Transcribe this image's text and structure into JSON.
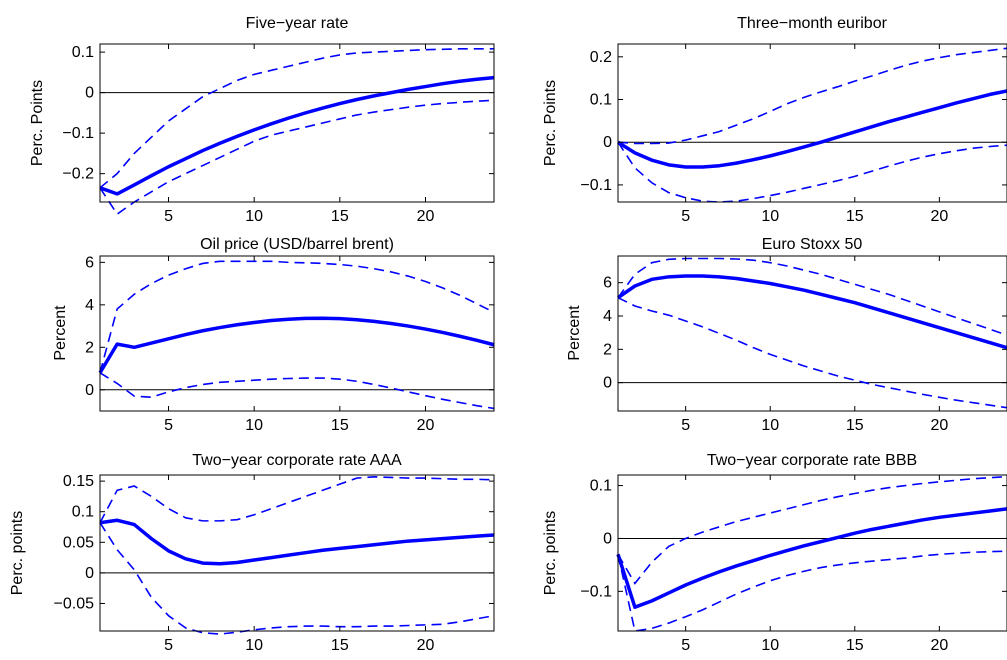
{
  "colors": {
    "estimate": "#0000ff",
    "band": "#0000ff",
    "axis": "#000000"
  },
  "chart_data": [
    {
      "type": "line",
      "title": "Five−year rate",
      "ylabel": "Perc. Points",
      "xlim": [
        1,
        24
      ],
      "ylim": [
        -0.27,
        0.12
      ],
      "xticks": [
        5,
        10,
        15,
        20
      ],
      "yticks": [
        -0.2,
        -0.1,
        0,
        0.1
      ],
      "ytick_labels": [
        "−0.2",
        "−0.1",
        "0",
        "0.1"
      ],
      "x": [
        1,
        2,
        3,
        4,
        5,
        6,
        7,
        8,
        9,
        10,
        11,
        12,
        13,
        14,
        15,
        16,
        17,
        18,
        19,
        20,
        21,
        22,
        23,
        24
      ],
      "series": [
        {
          "role": "estimate",
          "values": [
            -0.235,
            -0.25,
            -0.228,
            -0.205,
            -0.183,
            -0.163,
            -0.143,
            -0.125,
            -0.108,
            -0.092,
            -0.077,
            -0.063,
            -0.05,
            -0.038,
            -0.027,
            -0.017,
            -0.008,
            0.0,
            0.008,
            0.015,
            0.022,
            0.028,
            0.033,
            0.037
          ]
        },
        {
          "role": "upper",
          "values": [
            -0.235,
            -0.2,
            -0.15,
            -0.11,
            -0.07,
            -0.04,
            -0.01,
            0.01,
            0.03,
            0.045,
            0.055,
            0.065,
            0.075,
            0.085,
            0.093,
            0.098,
            0.1,
            0.102,
            0.104,
            0.106,
            0.107,
            0.108,
            0.108,
            0.108
          ]
        },
        {
          "role": "lower",
          "values": [
            -0.235,
            -0.3,
            -0.27,
            -0.245,
            -0.22,
            -0.2,
            -0.18,
            -0.16,
            -0.14,
            -0.12,
            -0.105,
            -0.095,
            -0.085,
            -0.075,
            -0.065,
            -0.055,
            -0.048,
            -0.042,
            -0.036,
            -0.031,
            -0.027,
            -0.024,
            -0.021,
            -0.019
          ]
        }
      ]
    },
    {
      "type": "line",
      "title": "Three−month euribor",
      "ylabel": "Perc. Points",
      "xlim": [
        1,
        24
      ],
      "ylim": [
        -0.14,
        0.23
      ],
      "xticks": [
        5,
        10,
        15,
        20
      ],
      "yticks": [
        -0.1,
        0,
        0.1,
        0.2
      ],
      "ytick_labels": [
        "−0.1",
        "0",
        "0.1",
        "0.2"
      ],
      "x": [
        1,
        2,
        3,
        4,
        5,
        6,
        7,
        8,
        9,
        10,
        11,
        12,
        13,
        14,
        15,
        16,
        17,
        18,
        19,
        20,
        21,
        22,
        23,
        24
      ],
      "series": [
        {
          "role": "estimate",
          "values": [
            0.0,
            -0.025,
            -0.042,
            -0.053,
            -0.058,
            -0.058,
            -0.055,
            -0.049,
            -0.041,
            -0.032,
            -0.022,
            -0.011,
            0.0,
            0.012,
            0.024,
            0.036,
            0.048,
            0.059,
            0.07,
            0.081,
            0.092,
            0.102,
            0.112,
            0.12
          ]
        },
        {
          "role": "upper",
          "values": [
            0.0,
            -0.003,
            -0.003,
            -0.002,
            0.005,
            0.015,
            0.025,
            0.04,
            0.055,
            0.072,
            0.09,
            0.105,
            0.118,
            0.13,
            0.143,
            0.155,
            0.168,
            0.18,
            0.19,
            0.198,
            0.205,
            0.21,
            0.215,
            0.22
          ]
        },
        {
          "role": "lower",
          "values": [
            0.0,
            -0.06,
            -0.095,
            -0.118,
            -0.13,
            -0.138,
            -0.14,
            -0.138,
            -0.132,
            -0.125,
            -0.117,
            -0.108,
            -0.099,
            -0.09,
            -0.08,
            -0.068,
            -0.056,
            -0.045,
            -0.035,
            -0.027,
            -0.02,
            -0.014,
            -0.01,
            -0.007
          ]
        }
      ]
    },
    {
      "type": "line",
      "title": "Oil price (USD/barrel brent)",
      "ylabel": "Percent",
      "xlim": [
        1,
        24
      ],
      "ylim": [
        -1.0,
        6.3
      ],
      "xticks": [
        5,
        10,
        15,
        20
      ],
      "yticks": [
        0,
        2,
        4,
        6
      ],
      "ytick_labels": [
        "0",
        "2",
        "4",
        "6"
      ],
      "x": [
        1,
        2,
        3,
        4,
        5,
        6,
        7,
        8,
        9,
        10,
        11,
        12,
        13,
        14,
        15,
        16,
        17,
        18,
        19,
        20,
        21,
        22,
        23,
        24
      ],
      "series": [
        {
          "role": "estimate",
          "values": [
            0.8,
            2.15,
            2.0,
            2.2,
            2.4,
            2.6,
            2.78,
            2.93,
            3.06,
            3.17,
            3.26,
            3.32,
            3.36,
            3.37,
            3.35,
            3.3,
            3.22,
            3.12,
            3.0,
            2.86,
            2.7,
            2.52,
            2.33,
            2.12
          ]
        },
        {
          "role": "upper",
          "values": [
            0.8,
            3.8,
            4.5,
            5.0,
            5.4,
            5.7,
            5.95,
            6.05,
            6.05,
            6.05,
            6.05,
            6.0,
            5.98,
            5.95,
            5.9,
            5.82,
            5.7,
            5.55,
            5.35,
            5.1,
            4.8,
            4.45,
            4.05,
            3.65
          ]
        },
        {
          "role": "lower",
          "values": [
            0.8,
            0.3,
            -0.3,
            -0.35,
            -0.1,
            0.1,
            0.25,
            0.35,
            0.4,
            0.45,
            0.5,
            0.53,
            0.55,
            0.55,
            0.5,
            0.4,
            0.25,
            0.08,
            -0.1,
            -0.28,
            -0.45,
            -0.6,
            -0.75,
            -0.88
          ]
        }
      ]
    },
    {
      "type": "line",
      "title": "Euro Stoxx 50",
      "ylabel": "Percent",
      "xlim": [
        1,
        24
      ],
      "ylim": [
        -1.7,
        7.6
      ],
      "xticks": [
        5,
        10,
        15,
        20
      ],
      "yticks": [
        0,
        2,
        4,
        6
      ],
      "ytick_labels": [
        "0",
        "2",
        "4",
        "6"
      ],
      "x": [
        1,
        2,
        3,
        4,
        5,
        6,
        7,
        8,
        9,
        10,
        11,
        12,
        13,
        14,
        15,
        16,
        17,
        18,
        19,
        20,
        21,
        22,
        23,
        24
      ],
      "series": [
        {
          "role": "estimate",
          "values": [
            5.1,
            5.8,
            6.2,
            6.35,
            6.4,
            6.4,
            6.35,
            6.25,
            6.1,
            5.95,
            5.75,
            5.55,
            5.3,
            5.05,
            4.8,
            4.5,
            4.2,
            3.9,
            3.6,
            3.3,
            3.0,
            2.7,
            2.4,
            2.1
          ]
        },
        {
          "role": "upper",
          "values": [
            5.1,
            6.5,
            7.2,
            7.4,
            7.45,
            7.45,
            7.45,
            7.42,
            7.35,
            7.2,
            7.0,
            6.75,
            6.5,
            6.2,
            5.9,
            5.6,
            5.3,
            4.95,
            4.6,
            4.25,
            3.9,
            3.55,
            3.2,
            2.85
          ]
        },
        {
          "role": "lower",
          "values": [
            5.1,
            4.6,
            4.3,
            4.05,
            3.7,
            3.35,
            2.95,
            2.55,
            2.1,
            1.7,
            1.35,
            1.0,
            0.7,
            0.4,
            0.15,
            -0.1,
            -0.3,
            -0.5,
            -0.7,
            -0.88,
            -1.05,
            -1.2,
            -1.35,
            -1.5
          ]
        }
      ]
    },
    {
      "type": "line",
      "title": "Two−year corporate rate AAA",
      "ylabel": "Perc. points",
      "xlim": [
        1,
        24
      ],
      "ylim": [
        -0.095,
        0.16
      ],
      "xticks": [
        5,
        10,
        15,
        20
      ],
      "yticks": [
        -0.05,
        0,
        0.05,
        0.1,
        0.15
      ],
      "ytick_labels": [
        "−0.05",
        "0",
        "0.05",
        "0.1",
        "0.15"
      ],
      "x": [
        1,
        2,
        3,
        4,
        5,
        6,
        7,
        8,
        9,
        10,
        11,
        12,
        13,
        14,
        15,
        16,
        17,
        18,
        19,
        20,
        21,
        22,
        23,
        24
      ],
      "series": [
        {
          "role": "estimate",
          "values": [
            0.082,
            0.086,
            0.079,
            0.056,
            0.036,
            0.023,
            0.016,
            0.015,
            0.017,
            0.021,
            0.025,
            0.029,
            0.033,
            0.037,
            0.04,
            0.043,
            0.046,
            0.049,
            0.052,
            0.054,
            0.056,
            0.058,
            0.06,
            0.062
          ]
        },
        {
          "role": "upper",
          "values": [
            0.082,
            0.135,
            0.142,
            0.125,
            0.105,
            0.09,
            0.085,
            0.085,
            0.087,
            0.095,
            0.105,
            0.115,
            0.125,
            0.135,
            0.145,
            0.155,
            0.157,
            0.156,
            0.155,
            0.155,
            0.154,
            0.153,
            0.153,
            0.152
          ]
        },
        {
          "role": "lower",
          "values": [
            0.082,
            0.038,
            0.005,
            -0.04,
            -0.07,
            -0.09,
            -0.098,
            -0.1,
            -0.097,
            -0.093,
            -0.09,
            -0.088,
            -0.087,
            -0.087,
            -0.088,
            -0.088,
            -0.087,
            -0.087,
            -0.086,
            -0.085,
            -0.084,
            -0.08,
            -0.075,
            -0.07
          ]
        }
      ]
    },
    {
      "type": "line",
      "title": "Two−year corporate rate BBB",
      "ylabel": "Perc. points",
      "xlim": [
        1,
        24
      ],
      "ylim": [
        -0.175,
        0.12
      ],
      "xticks": [
        5,
        10,
        15,
        20
      ],
      "yticks": [
        -0.1,
        0,
        0.1
      ],
      "ytick_labels": [
        "−0.1",
        "0",
        "0.1"
      ],
      "x": [
        1,
        2,
        3,
        4,
        5,
        6,
        7,
        8,
        9,
        10,
        11,
        12,
        13,
        14,
        15,
        16,
        17,
        18,
        19,
        20,
        21,
        22,
        23,
        24
      ],
      "series": [
        {
          "role": "estimate",
          "values": [
            -0.03,
            -0.13,
            -0.118,
            -0.103,
            -0.088,
            -0.075,
            -0.063,
            -0.052,
            -0.042,
            -0.032,
            -0.023,
            -0.014,
            -0.006,
            0.002,
            0.01,
            0.017,
            0.023,
            0.029,
            0.035,
            0.04,
            0.044,
            0.048,
            0.052,
            0.056
          ]
        },
        {
          "role": "upper",
          "values": [
            -0.03,
            -0.085,
            -0.045,
            -0.015,
            0.0,
            0.012,
            0.022,
            0.032,
            0.04,
            0.048,
            0.056,
            0.064,
            0.072,
            0.079,
            0.085,
            0.091,
            0.096,
            0.1,
            0.104,
            0.107,
            0.11,
            0.113,
            0.115,
            0.117
          ]
        },
        {
          "role": "lower",
          "values": [
            -0.03,
            -0.175,
            -0.17,
            -0.16,
            -0.148,
            -0.135,
            -0.12,
            -0.105,
            -0.092,
            -0.08,
            -0.07,
            -0.062,
            -0.055,
            -0.05,
            -0.046,
            -0.043,
            -0.04,
            -0.037,
            -0.033,
            -0.03,
            -0.028,
            -0.026,
            -0.025,
            -0.024
          ]
        }
      ]
    }
  ]
}
